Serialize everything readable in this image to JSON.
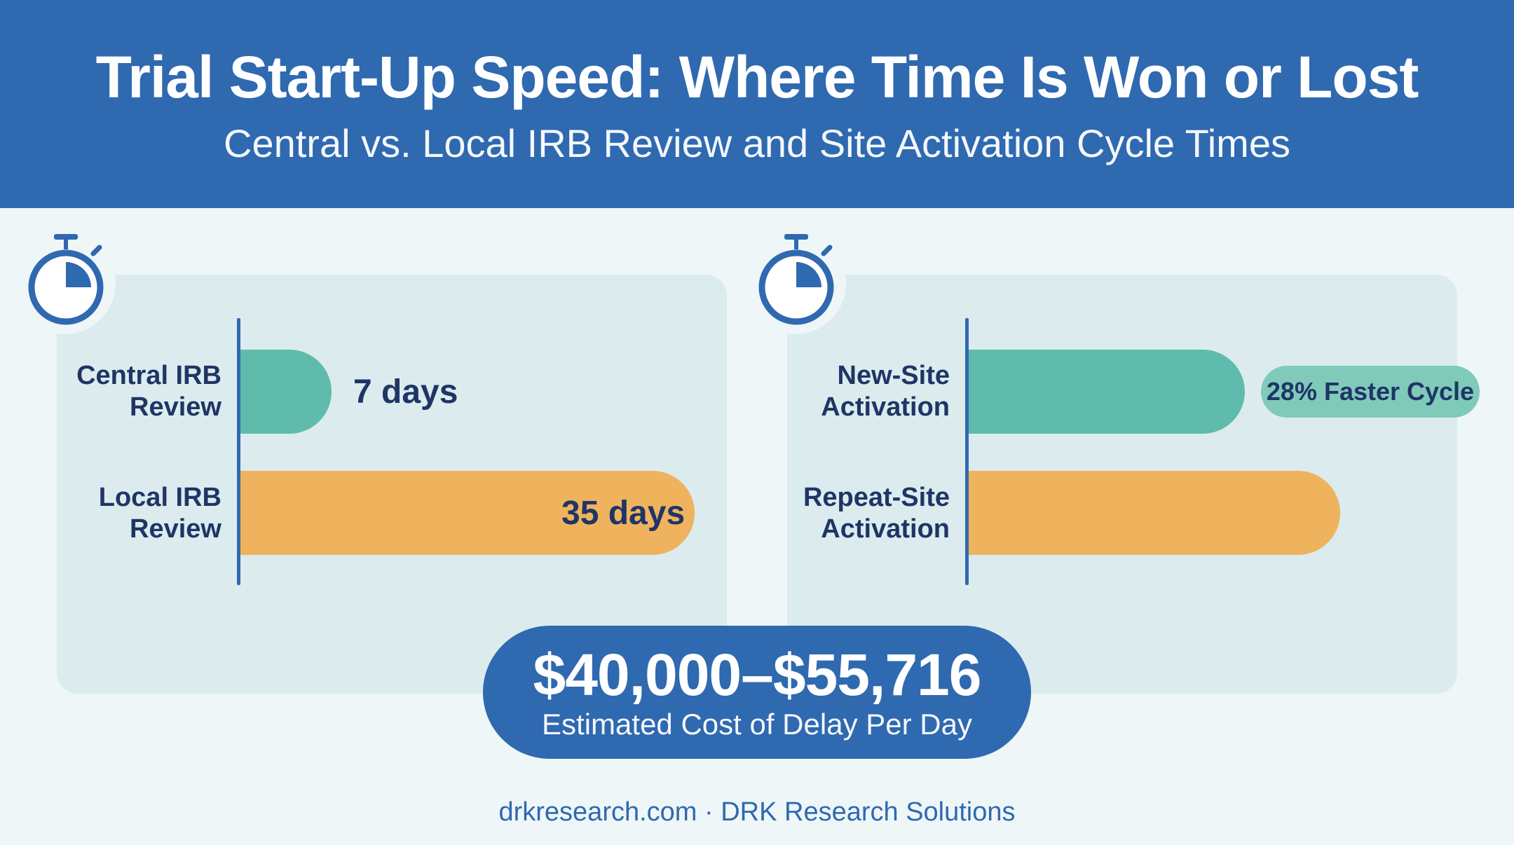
{
  "header": {
    "title": "Trial Start-Up Speed: Where Time Is Won or Lost",
    "subtitle": "Central vs. Local IRB Review and Site Activation Cycle Times"
  },
  "colors": {
    "brand_blue": "#2f69b0",
    "teal": "#5fbcac",
    "orange": "#efb35e",
    "navy_text": "#1f3566"
  },
  "icons": [
    "stopwatch-icon"
  ],
  "chart_data": [
    {
      "type": "bar",
      "orientation": "horizontal",
      "categories": [
        "Central IRB Review",
        "Local IRB Review"
      ],
      "category_lines": [
        [
          "Central IRB",
          "Review"
        ],
        [
          "Local IRB",
          "Review"
        ]
      ],
      "values": [
        7,
        35
      ],
      "value_labels": [
        "7 days",
        "35 days"
      ],
      "unit": "days",
      "bar_colors": [
        "#5fbcac",
        "#efb35e"
      ],
      "grid": false
    },
    {
      "type": "bar",
      "orientation": "horizontal",
      "categories": [
        "New-Site Activation",
        "Repeat-Site Activation"
      ],
      "category_lines": [
        [
          "New-Site",
          "Activation"
        ],
        [
          "Repeat-Site",
          "Activation"
        ]
      ],
      "values": [
        0.58,
        0.78
      ],
      "value_scale": "relative (no axis shown)",
      "annotation": "28% Faster Cycle",
      "bar_colors": [
        "#5fbcac",
        "#efb35e"
      ],
      "grid": false
    }
  ],
  "callout": {
    "value": "$40,000–$55,716",
    "caption": "Estimated Cost of Delay Per Day"
  },
  "footer": {
    "text": "drkresearch.com · DRK Research Solutions"
  }
}
